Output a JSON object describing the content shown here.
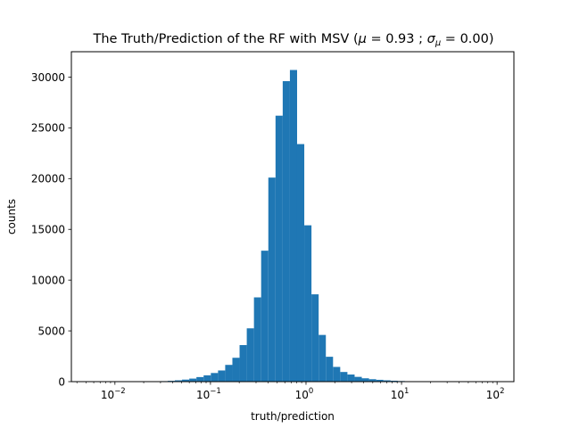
{
  "chart_data": {
    "type": "bar",
    "title_main": "The Truth/Prediction of the RF with MSV (",
    "title_mu": "μ",
    "title_eq1": " = 0.93 ; ",
    "title_sigma": "σ",
    "title_sigma_sub": "μ",
    "title_eq2": " = 0.00)",
    "xlabel": "truth/prediction",
    "ylabel": "counts",
    "x_scale": "log",
    "xlim": [
      0.0035,
      150
    ],
    "ylim": [
      0,
      32500
    ],
    "grid": false,
    "bar_color": "#1f77b4",
    "x_ticks": [
      {
        "value": 0.01,
        "base": "10",
        "exp": "−2"
      },
      {
        "value": 0.1,
        "base": "10",
        "exp": "−1"
      },
      {
        "value": 1,
        "base": "10",
        "exp": "0"
      },
      {
        "value": 10,
        "base": "10",
        "exp": "1"
      },
      {
        "value": 100,
        "base": "10",
        "exp": "2"
      }
    ],
    "y_ticks": [
      {
        "value": 0,
        "label": "0"
      },
      {
        "value": 5000,
        "label": "5000"
      },
      {
        "value": 10000,
        "label": "10000"
      },
      {
        "value": 15000,
        "label": "15000"
      },
      {
        "value": 20000,
        "label": "20000"
      },
      {
        "value": 25000,
        "label": "25000"
      },
      {
        "value": 30000,
        "label": "30000"
      }
    ],
    "bin_edges": [
      0.03,
      0.0357,
      0.0424,
      0.0504,
      0.06,
      0.0713,
      0.0848,
      0.1009,
      0.12,
      0.1426,
      0.1696,
      0.2017,
      0.2399,
      0.2852,
      0.3392,
      0.4034,
      0.4797,
      0.5705,
      0.6784,
      0.8067,
      0.9593,
      1.1408,
      1.3566,
      1.6133,
      1.9185,
      2.2815,
      2.7131,
      3.2264,
      3.8368,
      4.5627,
      5.4259,
      6.4524,
      7.6731,
      9.1247,
      10.851
    ],
    "counts": [
      50,
      80,
      130,
      200,
      300,
      450,
      620,
      850,
      1100,
      1650,
      2350,
      3600,
      5250,
      8300,
      12900,
      20100,
      26200,
      29600,
      30700,
      23400,
      15400,
      8600,
      4600,
      2450,
      1450,
      950,
      700,
      470,
      330,
      240,
      180,
      130,
      90,
      60
    ]
  }
}
